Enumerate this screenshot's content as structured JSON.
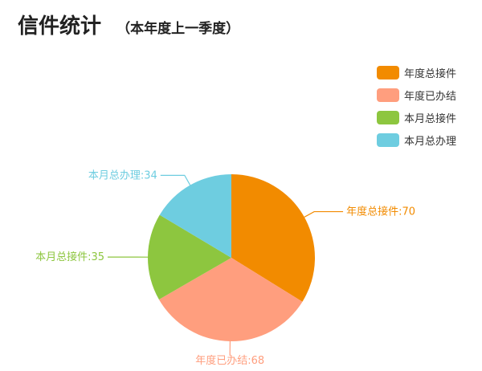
{
  "header": {
    "title": "信件统计",
    "subtitle": "（本年度上一季度）"
  },
  "chart_data": {
    "type": "pie",
    "title": "信件统计",
    "subtitle": "（本年度上一季度）",
    "legend_position": "top-right",
    "slices": [
      {
        "name": "年度总接件",
        "value": 70,
        "color": "#f28b00",
        "label": "年度总接件:70"
      },
      {
        "name": "年度已办结",
        "value": 68,
        "color": "#ff9e7e",
        "label": "年度已办结:68"
      },
      {
        "name": "本月总接件",
        "value": 35,
        "color": "#8dc63f",
        "label": "本月总接件:35"
      },
      {
        "name": "本月总办理",
        "value": 34,
        "color": "#6ecde0",
        "label": "本月总办理:34"
      }
    ]
  }
}
